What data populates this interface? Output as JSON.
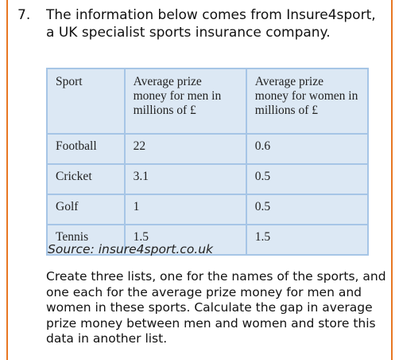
{
  "question": {
    "number": "7.",
    "intro": "The information below comes from Insure4sport, a UK specialist sports insurance company."
  },
  "table": {
    "headers": [
      "Sport",
      "Average prize money for men in millions of £",
      "Average prize money for women in millions of £"
    ],
    "rows": [
      [
        "Football",
        "22",
        "0.6"
      ],
      [
        "Cricket",
        "3.1",
        "0.5"
      ],
      [
        "Golf",
        "1",
        "0.5"
      ],
      [
        "Tennis",
        "1.5",
        "1.5"
      ]
    ]
  },
  "source": "Source: insure4sport.co.uk",
  "task": "Create three lists, one for the names of the sports, and one each for the average prize money for men and women in these sports. Calculate the gap in average prize money between men and women and store this data in another list.",
  "colors": {
    "border_accent": "#e87722",
    "table_fill": "#dce8f4",
    "table_border": "#a6c5e6"
  }
}
